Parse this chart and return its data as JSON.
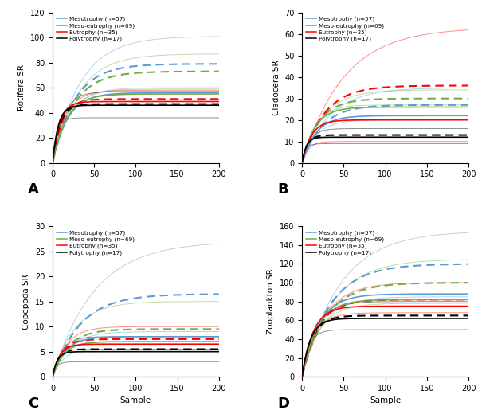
{
  "colors": {
    "meso": "#5B9BD5",
    "meso_eu": "#70AD47",
    "eu": "#FF0000",
    "poly": "#000000"
  },
  "legend_labels": [
    "Mesotrophy (n=57)",
    "Meso-eutrophy (n=69)",
    "Eutrophy (n=35)",
    "Polytrophy (n=17)"
  ],
  "panels": {
    "A": {
      "ylabel": "Rotifera SR",
      "ylim": [
        0,
        120
      ],
      "yticks": [
        0,
        20,
        40,
        60,
        80,
        100,
        120
      ],
      "show_xlabel": false,
      "curves": {
        "meso": {
          "obs_asymp": 56,
          "obs_b": 0.055,
          "chao_asymp": 79,
          "chao_b": 0.038,
          "ci_up_asymp": 101,
          "ci_up_b": 0.03,
          "ci_lo_asymp": 60,
          "ci_lo_b": 0.05
        },
        "meso_eu": {
          "obs_asymp": 55,
          "obs_b": 0.06,
          "chao_asymp": 73,
          "chao_b": 0.04,
          "ci_up_asymp": 87,
          "ci_up_b": 0.033,
          "ci_lo_asymp": 59,
          "ci_lo_b": 0.052
        },
        "eu": {
          "obs_asymp": 49,
          "obs_b": 0.12,
          "chao_asymp": 51,
          "chao_b": 0.09,
          "ci_up_asymp": 58,
          "ci_up_b": 0.065,
          "ci_lo_asymp": 47,
          "ci_lo_b": 0.12
        },
        "poly": {
          "obs_asymp": 46,
          "obs_b": 0.15,
          "chao_asymp": 47,
          "chao_b": 0.12,
          "ci_up_asymp": 57,
          "ci_up_b": 0.08,
          "ci_lo_asymp": 36,
          "ci_lo_b": 0.18
        }
      }
    },
    "B": {
      "ylabel": "Cladocera SR",
      "ylim": [
        0,
        70
      ],
      "yticks": [
        0,
        10,
        20,
        30,
        40,
        50,
        60,
        70
      ],
      "show_xlabel": false,
      "curves": {
        "meso": {
          "obs_asymp": 22,
          "obs_b": 0.06,
          "chao_asymp": 27,
          "chao_b": 0.042,
          "ci_up_asymp": 35,
          "ci_up_b": 0.03,
          "ci_lo_asymp": 20,
          "ci_lo_b": 0.06
        },
        "meso_eu": {
          "obs_asymp": 26,
          "obs_b": 0.065,
          "chao_asymp": 30,
          "chao_b": 0.05,
          "ci_up_asymp": 34,
          "ci_up_b": 0.04,
          "ci_lo_asymp": 27,
          "ci_lo_b": 0.065
        },
        "eu": {
          "obs_asymp": 20,
          "obs_b": 0.09,
          "chao_asymp": 36,
          "chao_b": 0.038,
          "ci_up_asymp": 63,
          "ci_up_b": 0.02,
          "ci_lo_asymp": 10,
          "ci_lo_b": 0.13
        },
        "poly": {
          "obs_asymp": 12,
          "obs_b": 0.2,
          "chao_asymp": 13,
          "chao_b": 0.16,
          "ci_up_asymp": 16,
          "ci_up_b": 0.11,
          "ci_lo_asymp": 9,
          "ci_lo_b": 0.22
        }
      }
    },
    "C": {
      "ylabel": "Copepoda SR",
      "ylim": [
        0,
        30
      ],
      "yticks": [
        0,
        5,
        10,
        15,
        20,
        25,
        30
      ],
      "show_xlabel": true,
      "curves": {
        "meso": {
          "obs_asymp": 8,
          "obs_b": 0.065,
          "chao_asymp": 16.5,
          "chao_b": 0.03,
          "ci_up_asymp": 27,
          "ci_up_b": 0.02,
          "ci_lo_asymp": 9,
          "ci_lo_b": 0.05
        },
        "meso_eu": {
          "obs_asymp": 7,
          "obs_b": 0.075,
          "chao_asymp": 9.5,
          "chao_b": 0.052,
          "ci_up_asymp": 15,
          "ci_up_b": 0.038,
          "ci_lo_asymp": 5.5,
          "ci_lo_b": 0.08
        },
        "eu": {
          "obs_asymp": 6.5,
          "obs_b": 0.12,
          "chao_asymp": 7.5,
          "chao_b": 0.09,
          "ci_up_asymp": 10,
          "ci_up_b": 0.06,
          "ci_lo_asymp": 5.5,
          "ci_lo_b": 0.13
        },
        "poly": {
          "obs_asymp": 5,
          "obs_b": 0.18,
          "chao_asymp": 5.5,
          "chao_b": 0.14,
          "ci_up_asymp": 8,
          "ci_up_b": 0.09,
          "ci_lo_asymp": 3.0,
          "ci_lo_b": 0.2
        }
      }
    },
    "D": {
      "ylabel": "Zooplankton SR",
      "ylim": [
        0,
        160
      ],
      "yticks": [
        0,
        20,
        40,
        60,
        80,
        100,
        120,
        140,
        160
      ],
      "show_xlabel": true,
      "curves": {
        "meso": {
          "obs_asymp": 88,
          "obs_b": 0.05,
          "chao_asymp": 120,
          "chao_b": 0.03,
          "ci_up_asymp": 155,
          "ci_up_b": 0.022,
          "ci_lo_asymp": 85,
          "ci_lo_b": 0.042
        },
        "meso_eu": {
          "obs_asymp": 82,
          "obs_b": 0.055,
          "chao_asymp": 100,
          "chao_b": 0.035,
          "ci_up_asymp": 125,
          "ci_up_b": 0.027,
          "ci_lo_asymp": 78,
          "ci_lo_b": 0.048
        },
        "eu": {
          "obs_asymp": 75,
          "obs_b": 0.075,
          "chao_asymp": 82,
          "chao_b": 0.052,
          "ci_up_asymp": 100,
          "ci_up_b": 0.038,
          "ci_lo_asymp": 68,
          "ci_lo_b": 0.07
        },
        "poly": {
          "obs_asymp": 62,
          "obs_b": 0.1,
          "chao_asymp": 65,
          "chao_b": 0.082,
          "ci_up_asymp": 80,
          "ci_up_b": 0.06,
          "ci_lo_asymp": 50,
          "ci_lo_b": 0.12
        }
      }
    }
  }
}
